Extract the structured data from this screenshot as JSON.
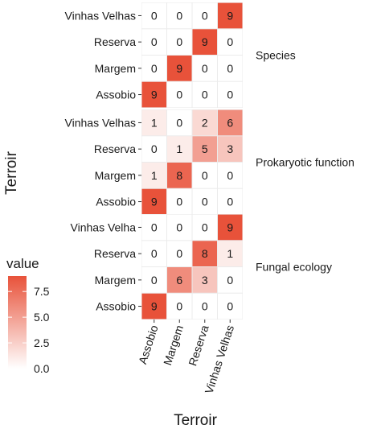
{
  "chart_data": {
    "type": "heatmap",
    "xlabel": "Terroir",
    "ylabel": "Terroir",
    "x_categories": [
      "Assobio",
      "Margem",
      "Reserva",
      "Vinhas Velhas"
    ],
    "panels": [
      {
        "name": "Species",
        "rows": [
          "Vinhas Velhas",
          "Reserva",
          "Margem",
          "Assobio"
        ],
        "values": [
          [
            0,
            0,
            0,
            9
          ],
          [
            0,
            0,
            9,
            0
          ],
          [
            0,
            9,
            0,
            0
          ],
          [
            9,
            0,
            0,
            0
          ]
        ]
      },
      {
        "name": "Prokaryotic function",
        "rows": [
          "Vinhas Velhas",
          "Reserva",
          "Margem",
          "Assobio"
        ],
        "values": [
          [
            1,
            0,
            2,
            6
          ],
          [
            0,
            1,
            5,
            3
          ],
          [
            1,
            8,
            0,
            0
          ],
          [
            9,
            0,
            0,
            0
          ]
        ]
      },
      {
        "name": "Fungal ecology",
        "rows": [
          "Vinhas Velha",
          "Reserva",
          "Margem",
          "Assobio"
        ],
        "values": [
          [
            0,
            0,
            0,
            9
          ],
          [
            0,
            0,
            8,
            1
          ],
          [
            0,
            6,
            3,
            0
          ],
          [
            9,
            0,
            0,
            0
          ]
        ]
      }
    ],
    "color_scale": {
      "low": "#ffffff",
      "high": "#e8523a",
      "range": [
        0,
        9
      ]
    },
    "legend": {
      "title": "value",
      "ticks": [
        "7.5",
        "5.0",
        "2.5",
        "0.0"
      ],
      "tick_values": [
        7.5,
        5.0,
        2.5,
        0.0
      ],
      "placement": "left"
    }
  }
}
